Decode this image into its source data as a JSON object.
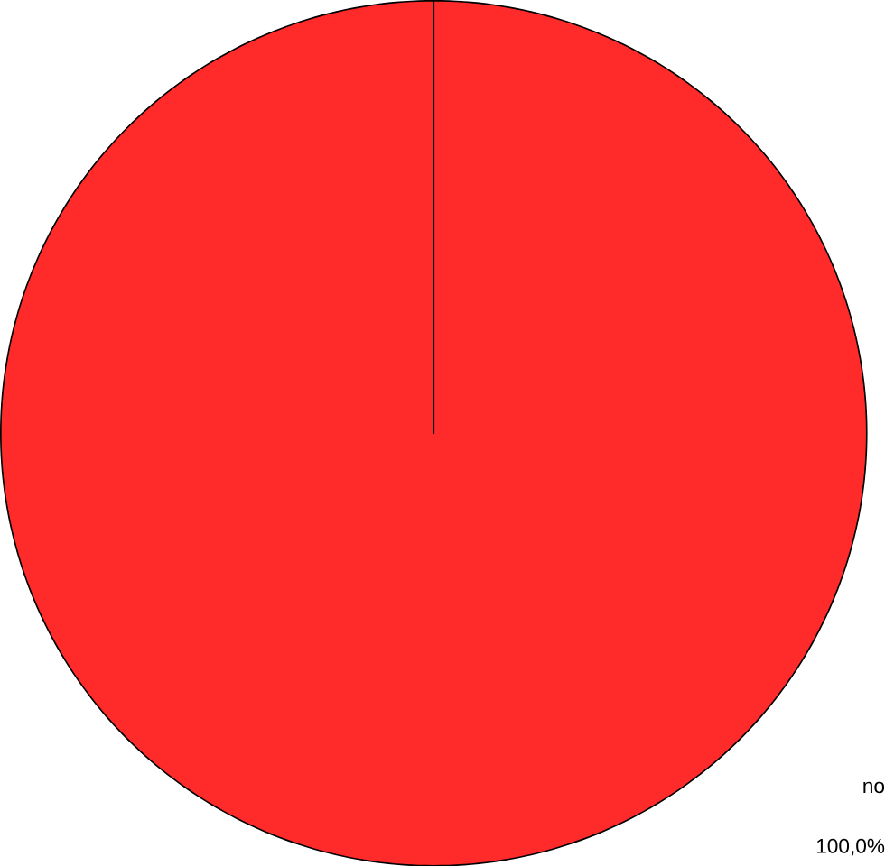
{
  "chart_data": {
    "type": "pie",
    "categories": [
      "no"
    ],
    "values": [
      100
    ],
    "colors": [
      "#ff2b2b"
    ],
    "value_labels": [
      "100,0%"
    ]
  }
}
